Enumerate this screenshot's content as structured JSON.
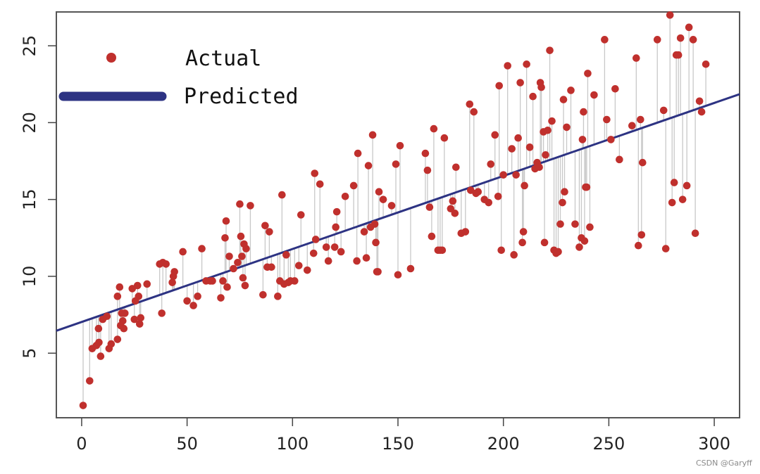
{
  "chart_data": {
    "type": "scatter",
    "title": "",
    "xlabel": "",
    "ylabel": "",
    "xlim": [
      -12,
      312
    ],
    "ylim": [
      0.8,
      27.2
    ],
    "xticks": [
      0,
      50,
      100,
      150,
      200,
      250,
      300
    ],
    "yticks": [
      5,
      10,
      15,
      20,
      25
    ],
    "grid": false,
    "legend_position": "top-left",
    "regression": {
      "name": "Predicted",
      "intercept": 7.03,
      "slope": 0.0475
    },
    "series": [
      {
        "name": "Actual",
        "x": [
          0.7,
          3.8,
          5,
          7,
          8,
          8.2,
          9,
          10,
          12,
          13,
          14,
          17,
          17,
          18,
          18.5,
          19,
          19.5,
          20,
          20.5,
          24,
          25,
          25.5,
          26.5,
          27,
          27.5,
          28,
          31,
          37,
          38,
          38.5,
          40,
          43,
          43.5,
          44,
          48,
          50,
          53,
          55,
          57,
          59,
          61,
          62,
          66,
          67,
          68,
          68.5,
          69,
          70,
          72,
          74,
          75,
          75.5,
          76,
          76.5,
          77,
          77.5,
          78,
          80,
          86,
          87,
          88,
          89,
          90,
          93,
          94,
          95,
          96,
          97,
          98,
          99,
          101,
          103,
          104,
          107,
          110,
          110.5,
          111,
          113,
          116,
          117,
          120,
          120.5,
          121,
          123,
          125,
          129,
          130.5,
          131,
          134,
          135,
          136,
          137,
          138,
          139,
          139.5,
          140,
          140.5,
          141,
          143,
          147,
          149,
          150,
          151,
          156,
          163,
          164,
          165,
          166,
          167,
          169,
          170,
          171,
          172,
          175,
          176,
          177,
          177.5,
          180,
          182,
          184,
          184.5,
          186,
          187,
          188,
          191,
          193,
          194,
          196,
          197.5,
          198,
          199,
          200,
          202,
          204,
          205,
          206,
          207,
          208,
          209,
          209.5,
          210,
          211,
          212.5,
          214,
          215,
          216,
          217,
          217.5,
          218,
          219,
          219.5,
          220,
          221,
          222,
          223,
          224,
          225,
          226,
          227,
          228,
          228.5,
          229,
          230,
          232,
          234,
          236,
          237,
          237.5,
          238,
          238.5,
          239,
          239.5,
          240,
          241,
          243,
          248,
          249,
          251,
          253,
          255,
          261,
          263,
          264,
          265,
          265.5,
          266,
          273,
          276,
          277,
          279,
          280,
          281,
          282,
          283,
          284,
          285,
          287,
          288,
          290,
          291,
          293,
          294,
          296
        ],
        "y": [
          1.6,
          3.2,
          5.3,
          5.5,
          6.6,
          5.7,
          4.8,
          7.2,
          7.4,
          5.3,
          5.6,
          5.9,
          8.7,
          9.3,
          6.8,
          7.6,
          7.1,
          6.6,
          7.6,
          9.2,
          7.2,
          8.4,
          9.4,
          8.7,
          6.9,
          7.3,
          9.5,
          10.8,
          7.6,
          10.9,
          10.8,
          9.6,
          10,
          10.3,
          11.6,
          8.4,
          8.1,
          8.7,
          11.8,
          9.7,
          9.7,
          9.7,
          8.6,
          9.7,
          12.5,
          13.6,
          9.3,
          11.3,
          10.5,
          10.9,
          14.7,
          12.6,
          11.3,
          9.9,
          12.1,
          9.4,
          11.8,
          14.6,
          8.8,
          13.3,
          10.6,
          12.9,
          10.6,
          8.7,
          9.7,
          15.3,
          9.5,
          11.4,
          9.6,
          9.7,
          9.7,
          10.7,
          14,
          10.4,
          11.5,
          16.7,
          12.4,
          16,
          11.9,
          11,
          11.9,
          13.2,
          14.2,
          11.6,
          15.2,
          15.9,
          11,
          18,
          12.9,
          11.2,
          17.2,
          13.2,
          19.2,
          13.4,
          12.2,
          10.3,
          10.3,
          15.5,
          15,
          14.6,
          17.3,
          10.1,
          18.5,
          10.5,
          18,
          16.9,
          14.5,
          12.6,
          19.6,
          11.7,
          11.7,
          11.7,
          19,
          14.4,
          14.9,
          14.1,
          17.1,
          12.8,
          12.9,
          21.2,
          15.6,
          20.7,
          15.4,
          15.5,
          15,
          14.8,
          17.3,
          19.2,
          15.2,
          22.4,
          11.7,
          16.6,
          23.7,
          18.3,
          11.4,
          16.6,
          19,
          22.6,
          12.2,
          12.9,
          15.9,
          23.8,
          18.4,
          21.7,
          17,
          17.4,
          17.1,
          22.6,
          22.3,
          19.4,
          12.2,
          17.9,
          19.5,
          24.7,
          20.1,
          11.7,
          11.5,
          11.6,
          13.4,
          14.8,
          21.5,
          15.5,
          19.7,
          22.1,
          13.4,
          11.9,
          12.5,
          18.9,
          20.7,
          12.3,
          15.8,
          15.8,
          23.2,
          13.2,
          21.8,
          25.4,
          20.2,
          18.9,
          22.2,
          17.6,
          19.8,
          24.2,
          12,
          20.2,
          12.7,
          17.4,
          25.4,
          20.8,
          11.8,
          27,
          14.8,
          16.1,
          24.4,
          24.4,
          25.5,
          15,
          15.9,
          26.2,
          25.4,
          12.8,
          21.4,
          20.7,
          23.8
        ]
      }
    ],
    "watermark": "CSDN @Garyff"
  },
  "legend": {
    "actual_label": "Actual",
    "predicted_label": "Predicted"
  },
  "colors": {
    "actual": "#c0302d",
    "predicted": "#2d3383",
    "residual": "#c8c8c8",
    "axis": "#444444"
  }
}
